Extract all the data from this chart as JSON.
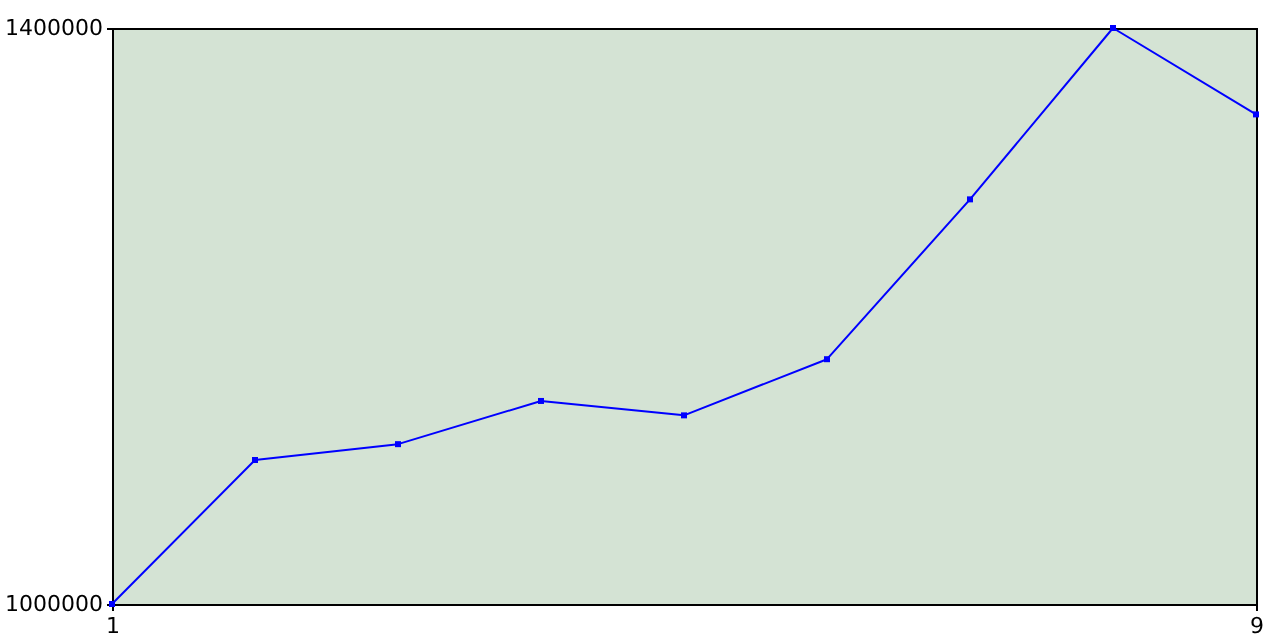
{
  "chart_data": {
    "type": "line",
    "x": [
      1,
      2,
      3,
      4,
      5,
      6,
      7,
      8,
      9
    ],
    "series": [
      {
        "color": "#0000ff",
        "values": [
          1000000,
          1100000,
          1111000,
          1141000,
          1131000,
          1170000,
          1281000,
          1400000,
          1340000
        ]
      }
    ],
    "xlim": [
      1,
      9
    ],
    "xticks": [
      1,
      9
    ],
    "ylim": [
      1000000,
      1400000
    ],
    "yticks": [
      1000000,
      1400000
    ],
    "marker": "square",
    "line_style": "solid"
  }
}
